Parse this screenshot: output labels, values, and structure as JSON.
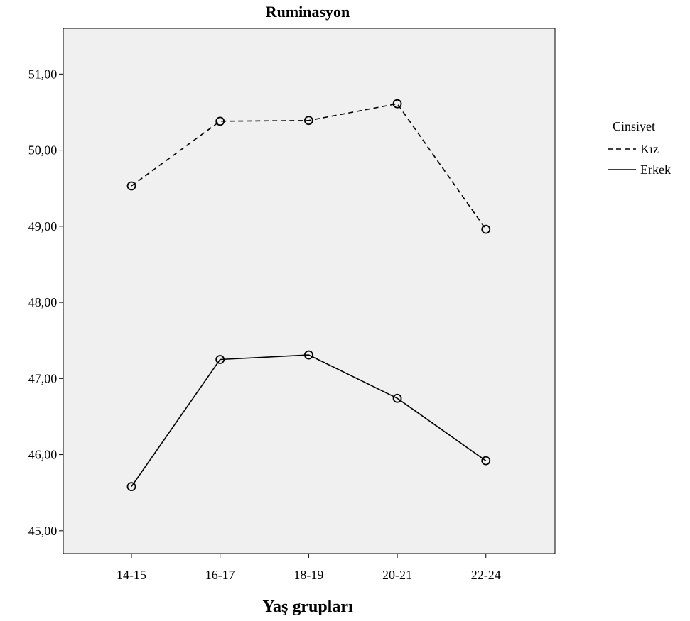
{
  "chart_data": {
    "type": "line",
    "title": "Ruminasyon",
    "xlabel": "Yaş grupları",
    "ylabel": "",
    "categories": [
      "14-15",
      "16-17",
      "18-19",
      "20-21",
      "22-24"
    ],
    "ylim": [
      44.7,
      51.6
    ],
    "yticks": [
      45,
      46,
      47,
      48,
      49,
      50,
      51
    ],
    "ytick_labels": [
      "45,00",
      "46,00",
      "47,00",
      "48,00",
      "49,00",
      "50,00",
      "51,00"
    ],
    "grid": false,
    "background_color": "#f0f0f0",
    "legend": {
      "title": "Cinsiyet",
      "position": "right"
    },
    "series": [
      {
        "name": "Kız",
        "style": "dashed",
        "marker": "open-circle",
        "color": "#000000",
        "values": [
          49.53,
          50.38,
          50.39,
          50.61,
          48.96
        ]
      },
      {
        "name": "Erkek",
        "style": "solid",
        "marker": "open-circle",
        "color": "#000000",
        "values": [
          45.58,
          47.25,
          47.31,
          46.74,
          45.92
        ]
      }
    ]
  }
}
